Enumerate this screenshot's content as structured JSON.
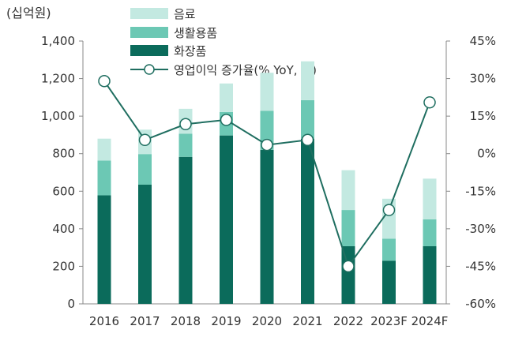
{
  "chart_data": {
    "type": "bar",
    "stacked": true,
    "categories": [
      "2016",
      "2017",
      "2018",
      "2019",
      "2020",
      "2021",
      "2022",
      "2023F",
      "2024F"
    ],
    "series": [
      {
        "name": "화장품",
        "kind": "bar",
        "axis": "left",
        "color": "#0b6b5b",
        "values": [
          578,
          635,
          783,
          897,
          820,
          880,
          307,
          230,
          307
        ]
      },
      {
        "name": "생활용품",
        "kind": "bar",
        "axis": "left",
        "color": "#6cc8b4",
        "values": [
          185,
          163,
          123,
          125,
          208,
          205,
          193,
          117,
          143
        ]
      },
      {
        "name": "음료",
        "kind": "bar",
        "axis": "left",
        "color": "#c3e9e1",
        "values": [
          117,
          130,
          133,
          152,
          203,
          207,
          212,
          213,
          217
        ]
      },
      {
        "name": "영업이익 증가율(% YoY, 우)",
        "kind": "line",
        "axis": "right",
        "color": "#1f6e60",
        "values": [
          29,
          5.5,
          11.8,
          13.5,
          3.5,
          5.5,
          -45,
          -22.5,
          20.5
        ]
      }
    ],
    "yleft": {
      "label": "(십억원)",
      "ylim": [
        0,
        1400
      ],
      "ticks": [
        "0",
        "200",
        "400",
        "600",
        "800",
        "1,000",
        "1,200",
        "1,400"
      ]
    },
    "yright": {
      "ylim": [
        -60,
        45
      ],
      "ticks": [
        "-60%",
        "-45%",
        "-30%",
        "-15%",
        "0%",
        "15%",
        "30%",
        "45%"
      ]
    },
    "legend": {
      "position": "top-center",
      "items": [
        "음료",
        "생활용품",
        "화장품",
        "영업이익 증가율(% YoY, 우)"
      ]
    },
    "grid": false
  }
}
